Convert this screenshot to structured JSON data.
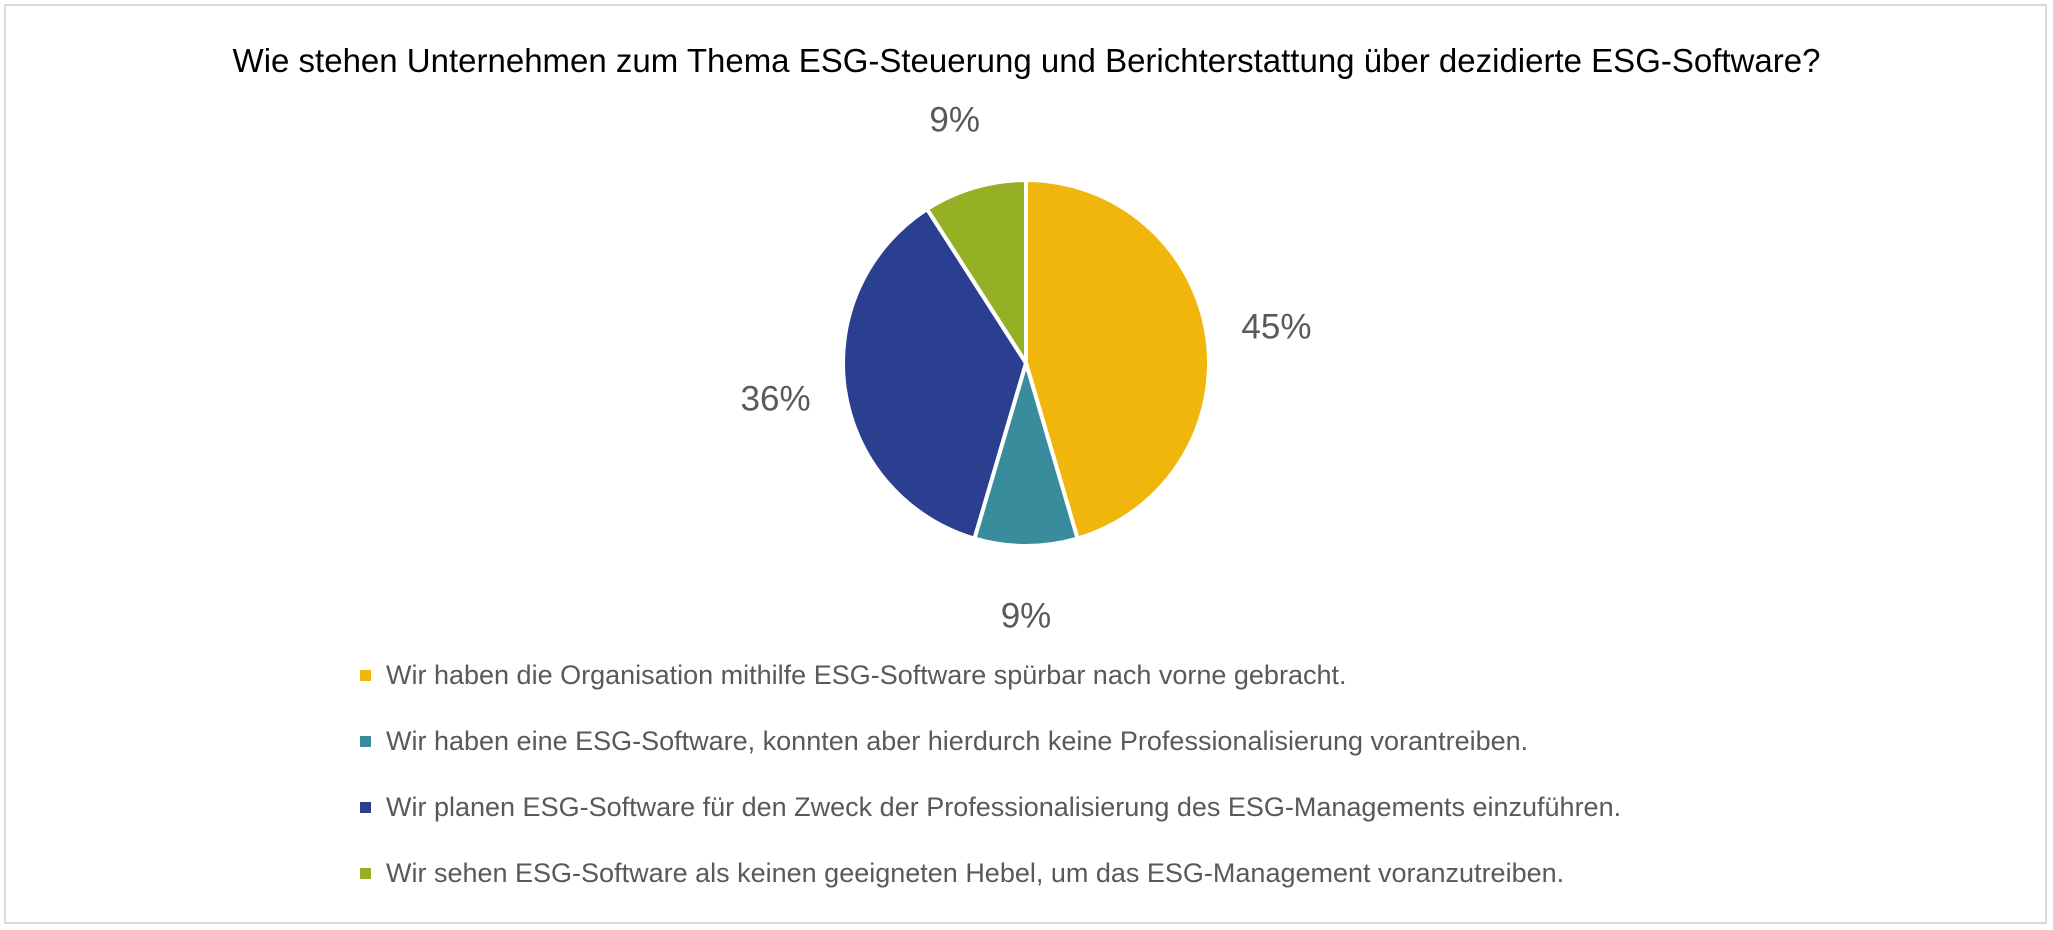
{
  "chart_data": {
    "type": "pie",
    "title": "Wie stehen Unternehmen zum Thema ESG-Steuerung und Berichterstattung über dezidierte ESG-Software?",
    "slices": [
      {
        "label": "Wir haben die Organisation mithilfe ESG-Software spürbar nach vorne gebracht.",
        "value": 45,
        "display": "45%",
        "color": "#F0B60C"
      },
      {
        "label": "Wir haben eine ESG-Software, konnten aber hierdurch keine Professionalisierung vorantreiben.",
        "value": 9,
        "display": "9%",
        "color": "#388C9C"
      },
      {
        "label": "Wir planen ESG-Software für den Zweck der Professionalisierung des ESG-Managements einzuführen.",
        "value": 36,
        "display": "36%",
        "color": "#2A3F8F"
      },
      {
        "label": "Wir sehen ESG-Software als keinen geeigneten Hebel, um das ESG-Management voranzutreiben.",
        "value": 9,
        "display": "9%",
        "color": "#95B024"
      }
    ],
    "legend_position": "bottom"
  }
}
